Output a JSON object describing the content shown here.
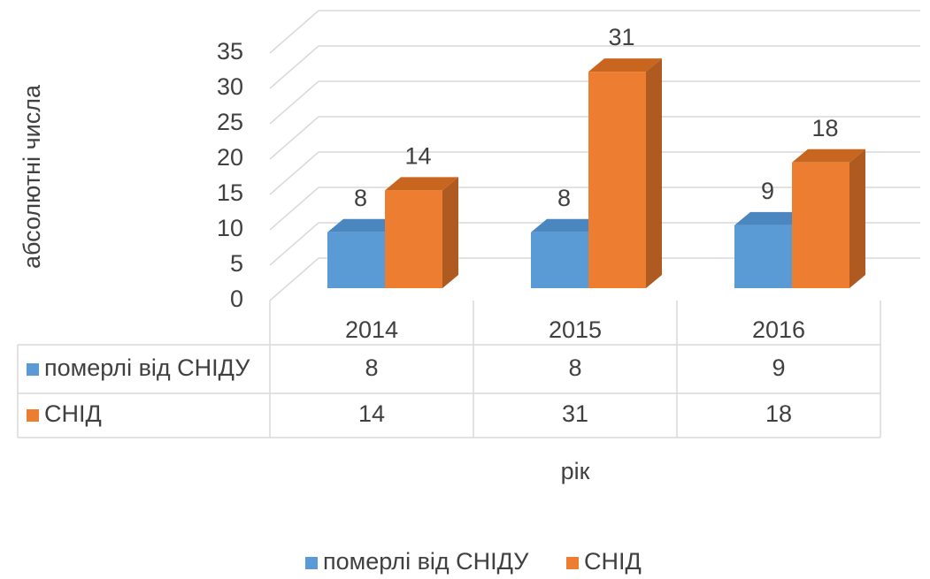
{
  "chart_data": {
    "type": "bar3d",
    "categories": [
      "2014",
      "2015",
      "2016"
    ],
    "series": [
      {
        "name": "померлі від СНІДУ",
        "color": "#5b9bd5",
        "values": [
          8,
          8,
          9
        ]
      },
      {
        "name": "СНІД",
        "color": "#ed7d31",
        "values": [
          14,
          31,
          18
        ]
      }
    ],
    "ylim": [
      0,
      35
    ],
    "yticks": [
      0,
      5,
      10,
      15,
      20,
      25,
      30,
      35
    ],
    "xlabel": "рік",
    "ylabel": "абсолютні числа",
    "grid": true,
    "legend": "bottom",
    "data_table": true
  }
}
